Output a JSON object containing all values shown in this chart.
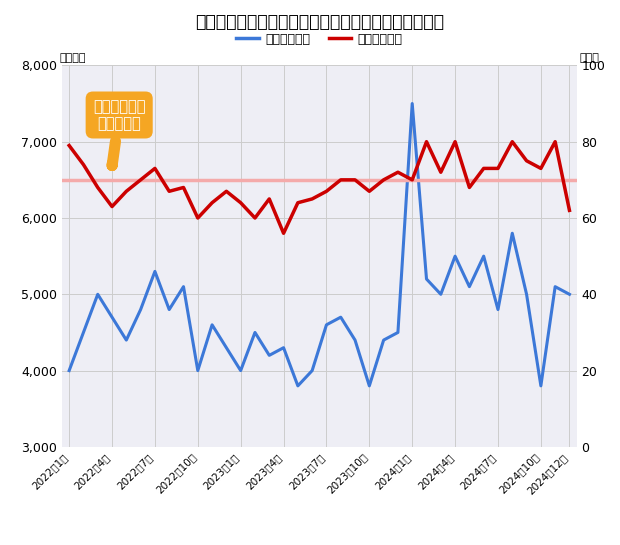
{
  "title": "近畿圏（関西）の新築マンション価格と契約率の推移",
  "xlabel_unit_left": "（万円）",
  "xlabel_unit_right": "（％）",
  "legend_price": "価格（万円）",
  "legend_contract": "契約率（％）",
  "annotation_line1": "好不調ライン",
  "annotation_line2": "（７０％）",
  "reference_line_value": 70,
  "xtick_labels": [
    "2022年1月",
    "2022年4月",
    "2022年7月",
    "2022年10月",
    "2023年1月",
    "2023年4月",
    "2023年7月",
    "2023年10月",
    "2024年1月",
    "2024年4月",
    "2024年7月",
    "2024年10月",
    "2024年12月"
  ],
  "tick_positions": [
    0,
    3,
    6,
    9,
    12,
    15,
    18,
    21,
    24,
    27,
    30,
    33,
    35
  ],
  "price_data": [
    4000,
    4500,
    5000,
    4700,
    4400,
    4800,
    5300,
    4800,
    5100,
    4000,
    4600,
    4300,
    4000,
    4500,
    4200,
    4300,
    3800,
    4000,
    4600,
    4700,
    4400,
    3800,
    4400,
    4500,
    7500,
    5200,
    5000,
    5500,
    5100,
    5500,
    4800,
    5800,
    5000,
    3800,
    5100,
    5000
  ],
  "contract_data": [
    79,
    74,
    68,
    63,
    67,
    70,
    73,
    67,
    68,
    60,
    64,
    67,
    64,
    60,
    65,
    56,
    64,
    65,
    67,
    70,
    70,
    67,
    70,
    72,
    70,
    80,
    72,
    80,
    68,
    73,
    73,
    80,
    75,
    73,
    80,
    62
  ],
  "price_ylim": [
    3000,
    8000
  ],
  "contract_ylim": [
    0,
    100
  ],
  "price_yticks": [
    3000,
    4000,
    5000,
    6000,
    7000,
    8000
  ],
  "contract_yticks": [
    0,
    20,
    40,
    60,
    80,
    100
  ],
  "price_color": "#3C78D8",
  "contract_color": "#CC0000",
  "ref_line_color": "#F4AAAA",
  "background_color": "#ffffff",
  "plot_bg_color": "#eeeef5",
  "grid_color": "#cccccc",
  "annotation_bg_color": "#F5A623",
  "annotation_text_color": "#ffffff"
}
